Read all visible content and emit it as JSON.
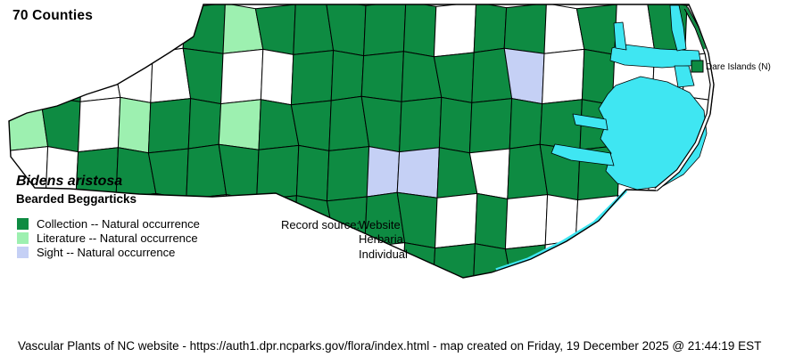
{
  "header": {
    "count_label": "70 Counties"
  },
  "species": {
    "scientific": "Bidens aristosa",
    "common": "Bearded Beggarticks"
  },
  "legend": {
    "items": [
      {
        "label": "Collection -- Natural occurrence",
        "color": "#0e8b42"
      },
      {
        "label": "Literature -- Natural occurrence",
        "color": "#9df0b0"
      },
      {
        "label": "Sight -- Natural occurrence",
        "color": "#c5d0f5"
      }
    ]
  },
  "record_source": {
    "label": "Record source:",
    "values": [
      "Website",
      "Herbaria",
      "Individual"
    ]
  },
  "map": {
    "dare_label": "Dare Islands (N)",
    "colors": {
      "G": "#0e8b42",
      "L": "#9df0b0",
      "V": "#c5d0f5",
      "W": "#ffffff",
      "C": "#3fe6f2"
    },
    "grid": [
      "WWWWWGLGGGGGWGGWGWGW",
      "GGWWWGWWGGGGGGVWGWWW",
      "LGWLGGLGGGGGGGGGGWWW",
      "WWGGGGGGGGVVGWGGGWWW",
      "WWWWWWWGGGGGWGWWWWWW",
      "WWWWWWWWWWWGGGGWWWWW"
    ]
  },
  "footer": {
    "text": "Vascular Plants of NC website - https://auth1.dpr.ncparks.gov/flora/index.html - map created on Friday, 19 December 2025 @ 21:44:19 EST"
  }
}
